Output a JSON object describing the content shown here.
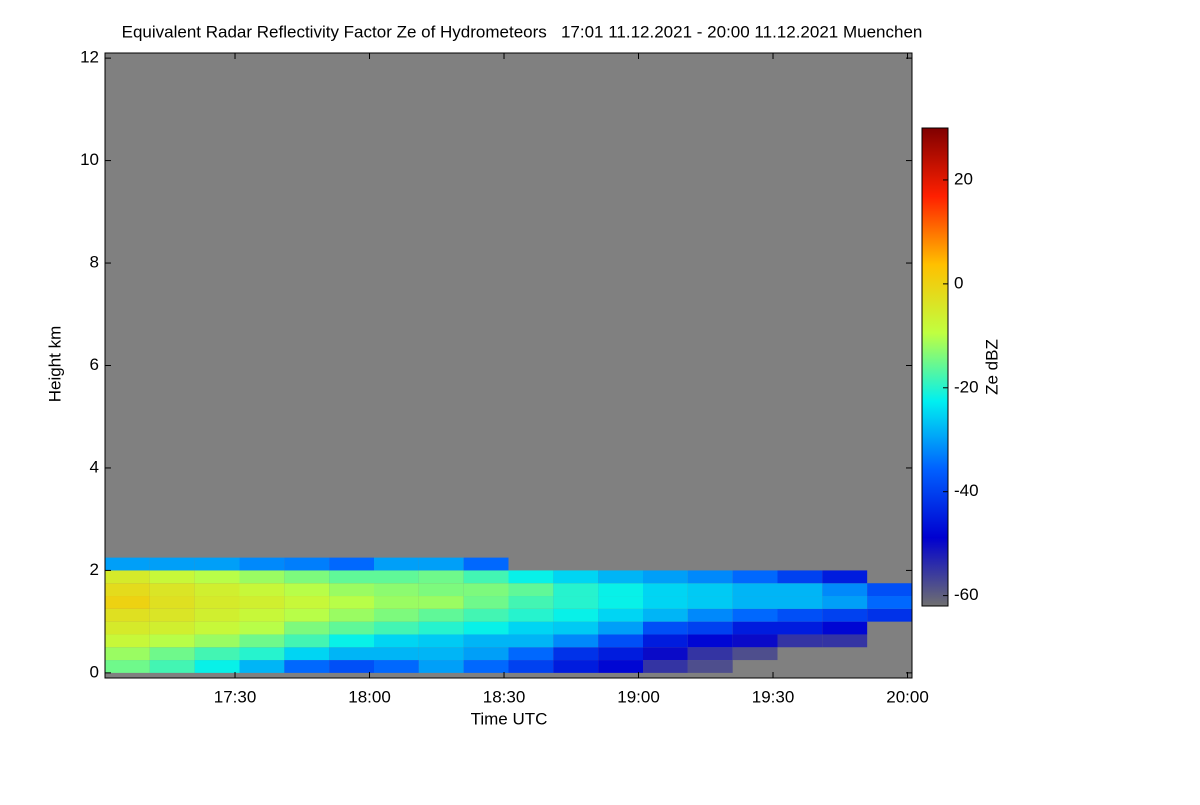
{
  "chart_data": {
    "type": "heatmap",
    "title": "Equivalent Radar Reflectivity Factor Ze of Hydrometeors   17:01 11.12.2021 - 20:00 11.12.2021 Muenchen",
    "x_label": "Time UTC",
    "y_label": "Height km",
    "colorbar_label": "Ze dBZ",
    "background": "#808080",
    "x": [
      "17:06",
      "17:16",
      "17:26",
      "17:36",
      "17:46",
      "17:56",
      "18:06",
      "18:16",
      "18:26",
      "18:36",
      "18:46",
      "18:56",
      "19:06",
      "19:16",
      "19:26",
      "19:36",
      "19:46",
      "19:56"
    ],
    "y": [
      0.125,
      0.375,
      0.625,
      0.875,
      1.125,
      1.375,
      1.625,
      1.875,
      2.125,
      2.375
    ],
    "values": [
      [
        -15,
        -12,
        -8,
        -5,
        -3,
        0,
        -2,
        -5,
        -30,
        null
      ],
      [
        -18,
        -15,
        -10,
        -6,
        -4,
        -3,
        -4,
        -8,
        -30,
        null
      ],
      [
        -22,
        -18,
        -12,
        -8,
        -6,
        -5,
        -6,
        -10,
        -30,
        null
      ],
      [
        -28,
        -20,
        -15,
        -10,
        -8,
        -6,
        -8,
        -12,
        -32,
        null
      ],
      [
        -35,
        -25,
        -18,
        -14,
        -10,
        -8,
        -10,
        -14,
        -33,
        null
      ],
      [
        -38,
        -28,
        -22,
        -16,
        -12,
        -10,
        -12,
        -16,
        -35,
        null
      ],
      [
        -35,
        -28,
        -25,
        -18,
        -14,
        -12,
        -13,
        -16,
        -30,
        null
      ],
      [
        -30,
        -28,
        -26,
        -20,
        -16,
        -12,
        -14,
        -15,
        -30,
        null
      ],
      [
        -35,
        -30,
        -28,
        -22,
        -18,
        -15,
        -14,
        -18,
        -35,
        null
      ],
      [
        -40,
        -35,
        -28,
        -25,
        -20,
        -18,
        -16,
        -22,
        null,
        null
      ],
      [
        -45,
        -42,
        -32,
        -26,
        -22,
        -20,
        -20,
        -25,
        null,
        null
      ],
      [
        -48,
        -45,
        -38,
        -30,
        -25,
        -22,
        -22,
        -28,
        null,
        null
      ],
      [
        -55,
        -50,
        -45,
        -38,
        -28,
        -25,
        -25,
        -30,
        null,
        null
      ],
      [
        -58,
        -55,
        -48,
        -40,
        -32,
        -26,
        -26,
        -32,
        null,
        null
      ],
      [
        null,
        -58,
        -50,
        -45,
        -35,
        -28,
        -28,
        -35,
        null,
        null
      ],
      [
        null,
        null,
        -55,
        -45,
        -38,
        -28,
        -28,
        -40,
        null,
        null
      ],
      [
        null,
        null,
        -55,
        -48,
        -40,
        -30,
        -32,
        -45,
        null,
        null
      ],
      [
        null,
        null,
        null,
        null,
        -42,
        -35,
        -38,
        null,
        null,
        null
      ]
    ],
    "xlim": [
      "17:01",
      "20:01"
    ],
    "xticks": [
      "17:30",
      "18:00",
      "18:30",
      "19:00",
      "19:30",
      "20:00"
    ],
    "ylim": [
      -0.1,
      12.1
    ],
    "yticks": [
      0,
      2,
      4,
      6,
      8,
      10,
      12
    ],
    "clim": [
      -62,
      30
    ],
    "cticks": [
      20,
      0,
      -20,
      -40,
      -60
    ],
    "colormap": [
      "#707070",
      "#0000d0",
      "#0060ff",
      "#00f0f0",
      "#c0ff40",
      "#ffc000",
      "#ff2000",
      "#800000"
    ]
  }
}
